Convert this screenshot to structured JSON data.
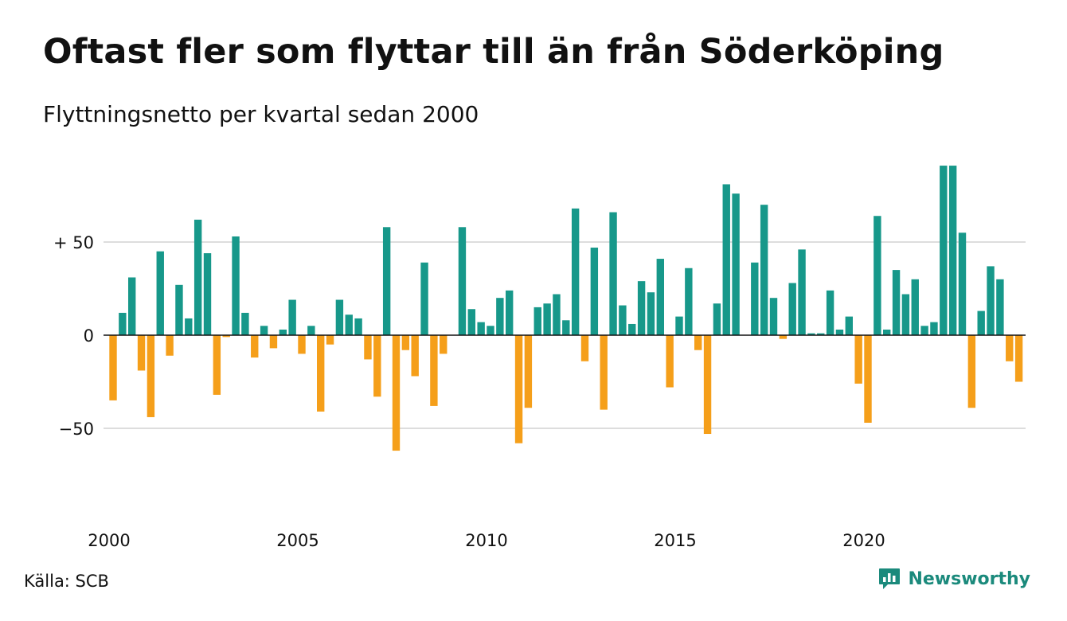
{
  "title": "Oftast fler som flyttar till än från Söderköping",
  "subtitle": "Flyttningsnetto per kvartal sedan 2000",
  "source": "Källa: SCB",
  "brand": "Newsworthy",
  "colors": {
    "positive": "#17988a",
    "negative": "#f59f1a",
    "gridline": "#dddddd",
    "zero_line": "#111111",
    "brand": "#1b8a7c"
  },
  "chart_data": {
    "type": "bar",
    "title": "Oftast fler som flyttar till än från Söderköping",
    "subtitle": "Flyttningsnetto per kvartal sedan 2000",
    "x_start": "2000-Q1",
    "x_ticks": [
      "2000",
      "2005",
      "2010",
      "2015",
      "2020"
    ],
    "y_ticks": [
      {
        "value": 50,
        "label": "+ 50"
      },
      {
        "value": 0,
        "label": "0"
      },
      {
        "value": -50,
        "label": "−50"
      }
    ],
    "ylim": [
      -70,
      95
    ],
    "grid": true,
    "values": [
      -35,
      12,
      31,
      -19,
      -44,
      45,
      -11,
      27,
      9,
      62,
      44,
      -32,
      -1,
      53,
      12,
      -12,
      5,
      -7,
      3,
      19,
      -10,
      5,
      -41,
      -5,
      19,
      11,
      9,
      -13,
      -33,
      58,
      -62,
      -8,
      -22,
      39,
      -38,
      -10,
      0,
      58,
      14,
      7,
      5,
      20,
      24,
      -58,
      -39,
      15,
      17,
      22,
      8,
      68,
      -14,
      47,
      -40,
      66,
      16,
      6,
      29,
      23,
      41,
      -28,
      10,
      36,
      -8,
      -53,
      17,
      81,
      76,
      0,
      39,
      70,
      20,
      -2,
      28,
      46,
      1,
      1,
      24,
      3,
      10,
      -26,
      -47,
      64,
      3,
      35,
      22,
      30,
      5,
      7,
      91,
      91,
      55,
      -39,
      13,
      37,
      30,
      -14,
      -25
    ]
  }
}
